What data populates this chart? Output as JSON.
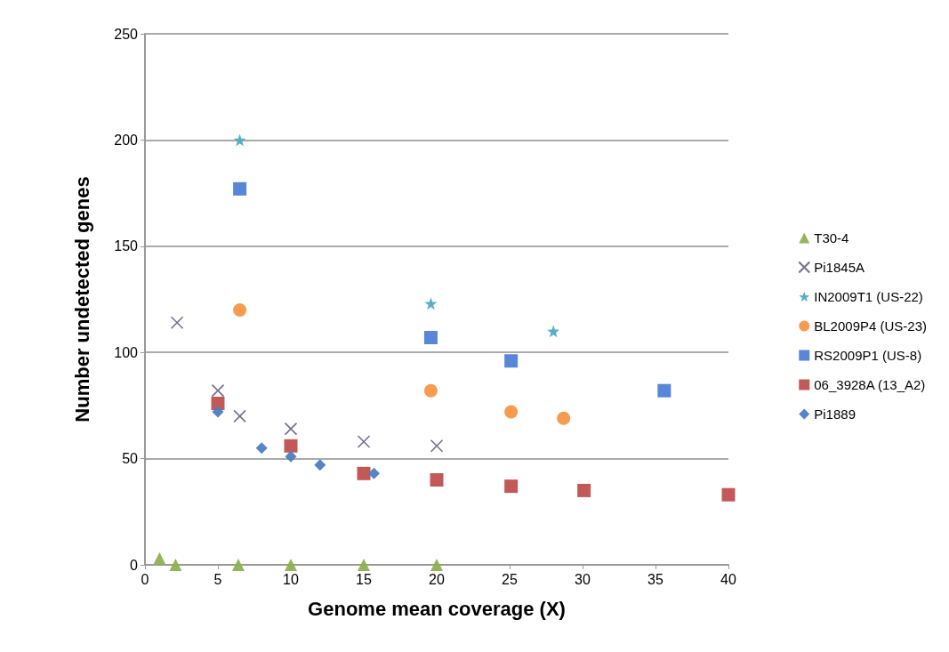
{
  "chart_data": {
    "type": "scatter",
    "xlabel": "Genome mean coverage (X)",
    "ylabel": "Number undetected genes",
    "xlim": [
      0,
      40
    ],
    "xticks": [
      0,
      5,
      10,
      15,
      20,
      25,
      30,
      35,
      40
    ],
    "ylim": [
      0,
      250
    ],
    "yticks": [
      0,
      50,
      100,
      150,
      200,
      250
    ],
    "grid": "y",
    "legend": "right",
    "series": [
      {
        "name": "T30-4",
        "color": "#8db24e",
        "marker": "triangle",
        "x": [
          1.0,
          2.1,
          6.4,
          10,
          15,
          20
        ],
        "values": [
          3,
          0,
          0,
          0,
          0,
          0
        ]
      },
      {
        "name": "Pi1845A",
        "color": "#50497a",
        "marker": "cross",
        "x": [
          2.2,
          5,
          6.5,
          10,
          15,
          20
        ],
        "values": [
          114,
          82,
          70,
          64,
          58,
          56
        ]
      },
      {
        "name": "IN2009T1 (US-22)",
        "color": "#4bacc6",
        "marker": "star",
        "x": [
          6.5,
          19.6,
          28
        ],
        "values": [
          200,
          123,
          110
        ]
      },
      {
        "name": "BL2009P4 (US-23)",
        "color": "#f79646",
        "marker": "circle",
        "x": [
          6.5,
          19.6,
          25.1,
          28.7
        ],
        "values": [
          120,
          82,
          72,
          69
        ]
      },
      {
        "name": "RS2009P1 (US-8)",
        "color": "#4f81d5",
        "marker": "square",
        "x": [
          6.5,
          19.6,
          25.1,
          35.6
        ],
        "values": [
          177,
          107,
          96,
          82
        ]
      },
      {
        "name": "06_3928A (13_A2)",
        "color": "#c0504d",
        "marker": "square",
        "x": [
          5,
          10,
          15,
          20,
          25.1,
          30.1,
          40
        ],
        "values": [
          76,
          56,
          43,
          40,
          37,
          35,
          33
        ]
      },
      {
        "name": "Pi1889",
        "color": "#4a7ec4",
        "marker": "diamond",
        "x": [
          5,
          8,
          10,
          12,
          15.7
        ],
        "values": [
          72,
          55,
          51,
          47,
          43
        ]
      }
    ]
  }
}
